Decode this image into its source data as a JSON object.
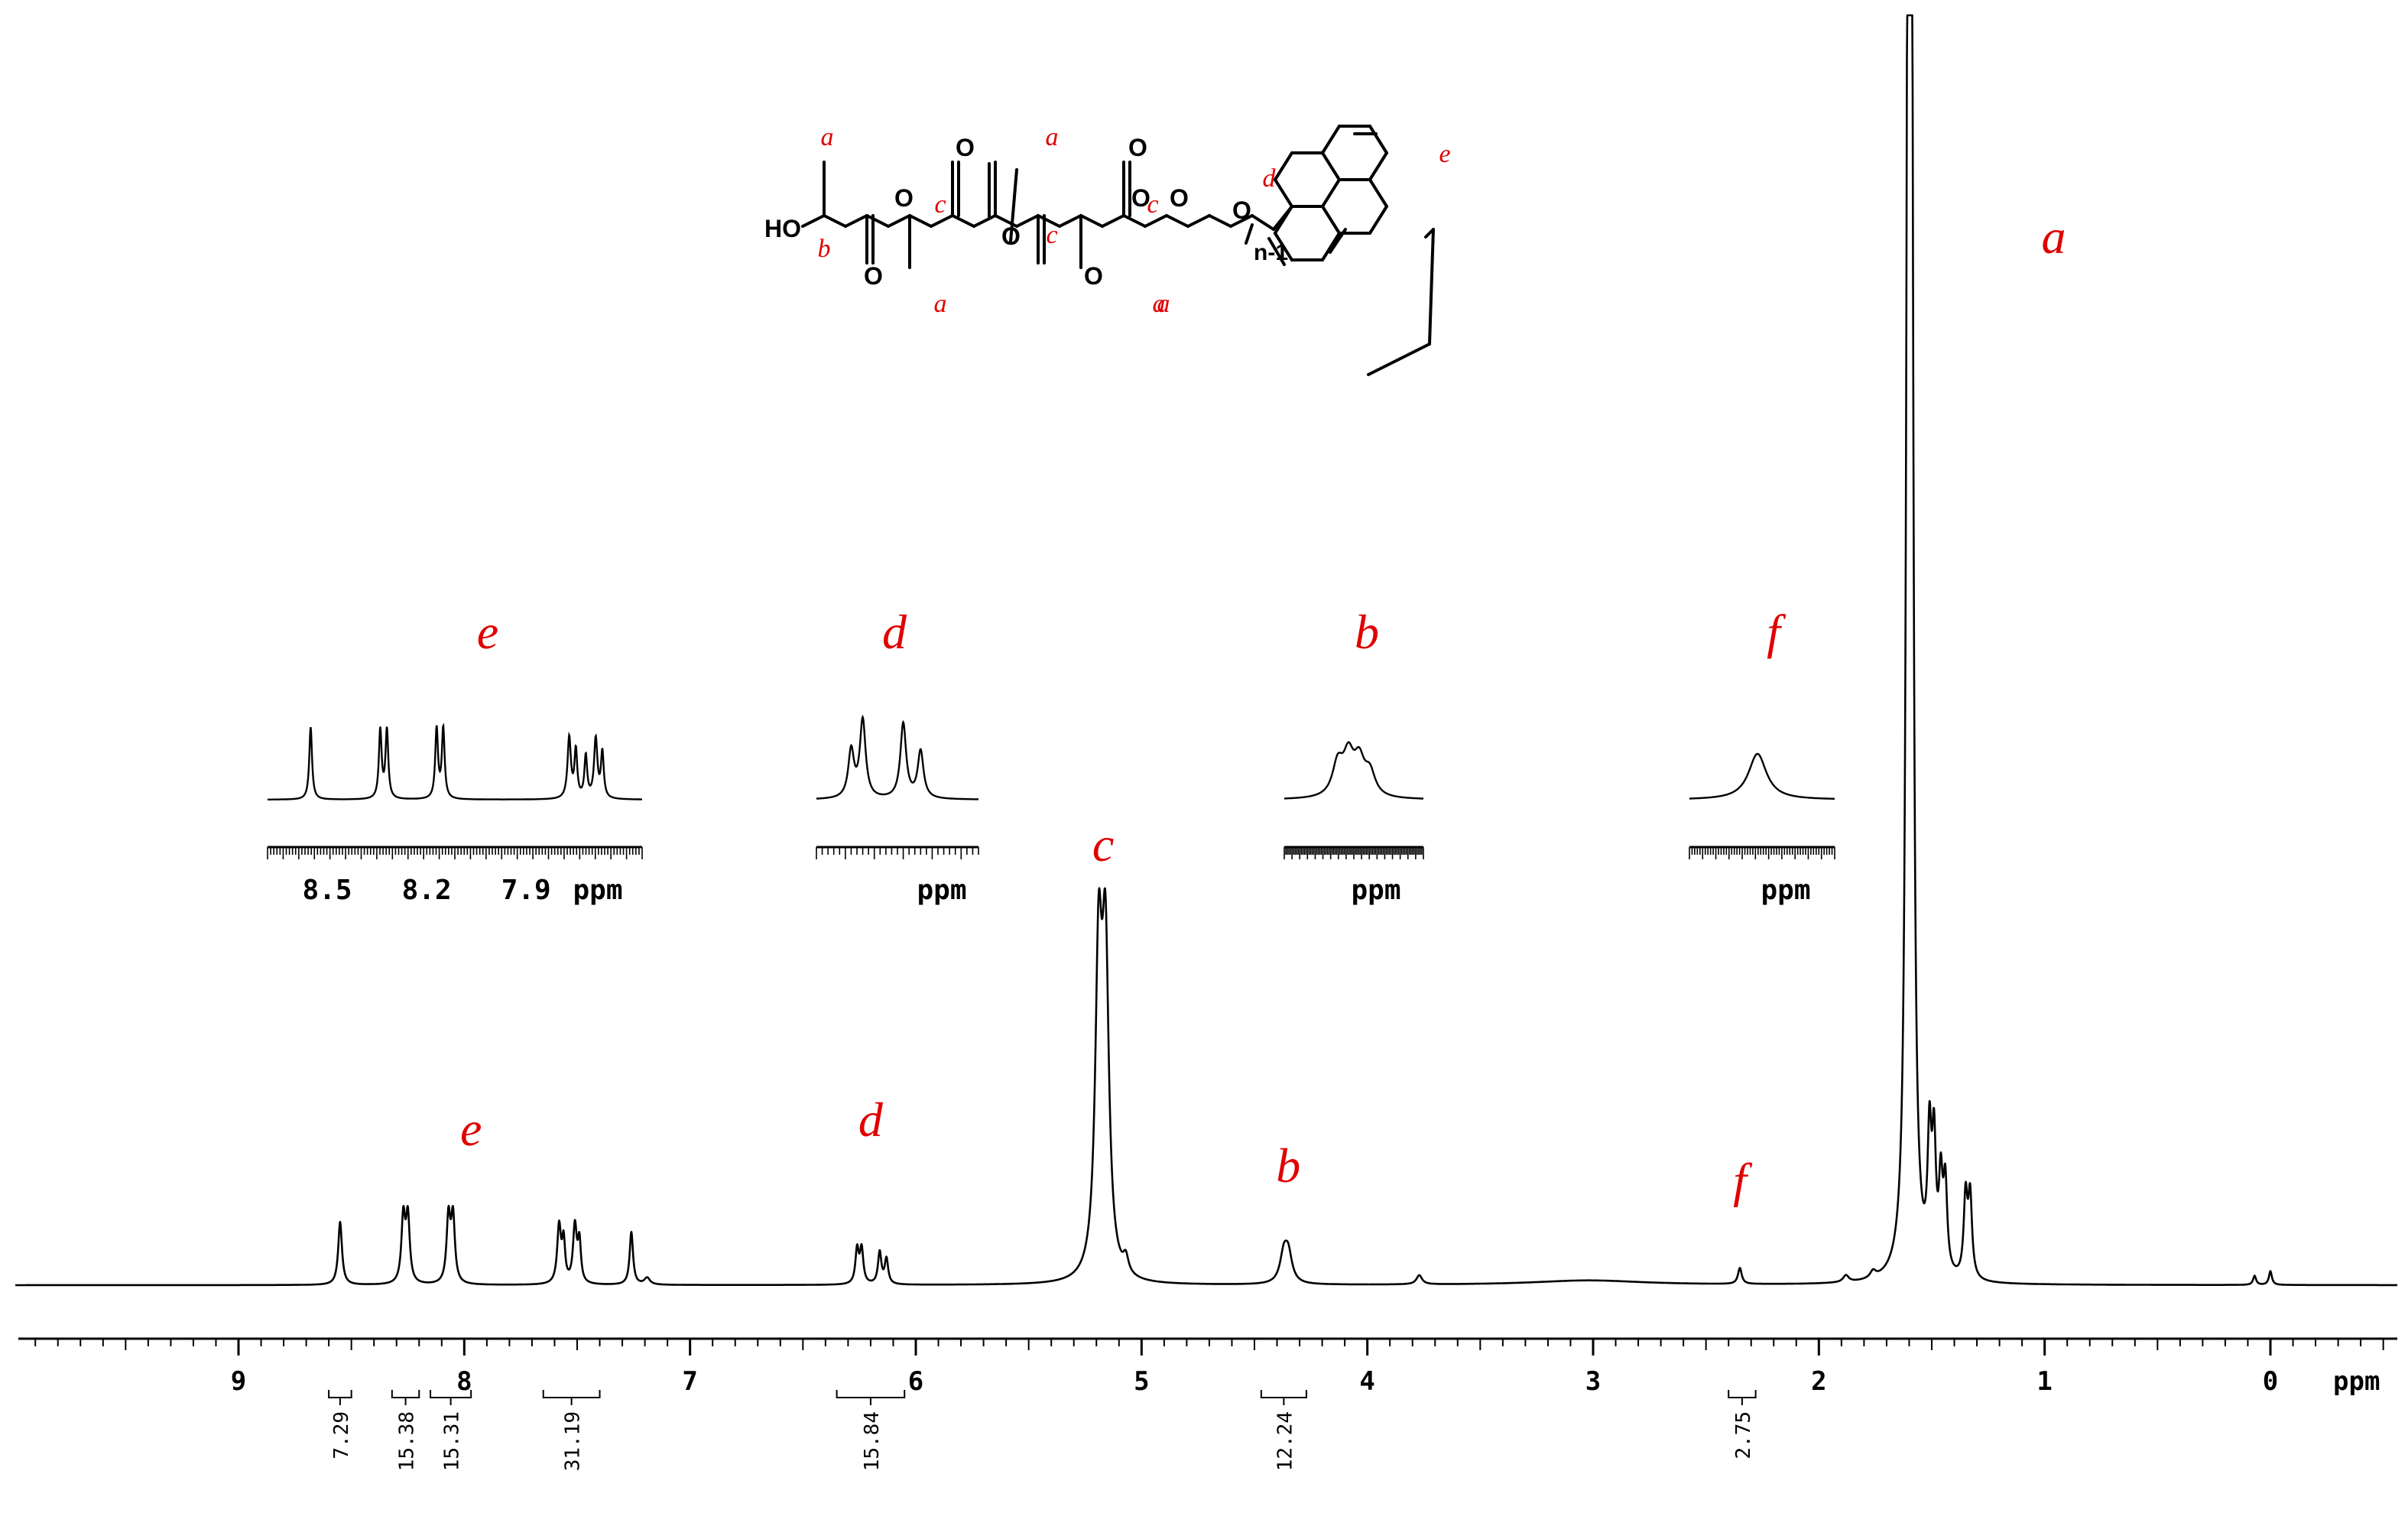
{
  "chart_data": {
    "type": "line",
    "title": "",
    "xlabel": "ppm",
    "ylabel": "",
    "x_reversed": true,
    "xlim": [
      10.0,
      -0.5
    ],
    "x_ticks": [
      9,
      8,
      7,
      6,
      5,
      4,
      3,
      2,
      1,
      0
    ],
    "x_tick_labels": [
      "9",
      "8",
      "7",
      "6",
      "5",
      "4",
      "3",
      "2",
      "1",
      "0"
    ],
    "grid": false,
    "series": [
      {
        "peaks": [
          {
            "x": 8.55,
            "h": 0.055,
            "w": 0.01
          },
          {
            "x": 8.27,
            "h": 0.057,
            "w": 0.01
          },
          {
            "x": 8.25,
            "h": 0.057,
            "w": 0.01
          },
          {
            "x": 8.07,
            "h": 0.057,
            "w": 0.01
          },
          {
            "x": 8.05,
            "h": 0.057,
            "w": 0.01
          },
          {
            "x": 7.58,
            "h": 0.05,
            "w": 0.01
          },
          {
            "x": 7.56,
            "h": 0.035,
            "w": 0.008
          },
          {
            "x": 7.51,
            "h": 0.05,
            "w": 0.01
          },
          {
            "x": 7.49,
            "h": 0.035,
            "w": 0.008
          },
          {
            "x": 7.26,
            "h": 0.046,
            "w": 0.009
          },
          {
            "x": 7.19,
            "h": 0.006,
            "w": 0.015
          },
          {
            "x": 6.26,
            "h": 0.03,
            "w": 0.009
          },
          {
            "x": 6.24,
            "h": 0.03,
            "w": 0.009
          },
          {
            "x": 6.16,
            "h": 0.028,
            "w": 0.009
          },
          {
            "x": 6.13,
            "h": 0.022,
            "w": 0.009
          },
          {
            "x": 5.19,
            "h": 0.27,
            "w": 0.018
          },
          {
            "x": 5.16,
            "h": 0.27,
            "w": 0.018
          },
          {
            "x": 5.07,
            "h": 0.014,
            "w": 0.014
          },
          {
            "x": 4.37,
            "h": 0.024,
            "w": 0.02
          },
          {
            "x": 4.35,
            "h": 0.024,
            "w": 0.02
          },
          {
            "x": 3.77,
            "h": 0.008,
            "w": 0.015
          },
          {
            "x": 3.02,
            "h": 0.004,
            "w": 0.3
          },
          {
            "x": 2.35,
            "h": 0.014,
            "w": 0.01
          },
          {
            "x": 1.88,
            "h": 0.006,
            "w": 0.015
          },
          {
            "x": 1.76,
            "h": 0.006,
            "w": 0.015
          },
          {
            "x": 1.605,
            "h": 1.15,
            "w": 0.009
          },
          {
            "x": 1.59,
            "h": 1.15,
            "w": 0.009
          },
          {
            "x": 1.51,
            "h": 0.11,
            "w": 0.01
          },
          {
            "x": 1.49,
            "h": 0.105,
            "w": 0.01
          },
          {
            "x": 1.46,
            "h": 0.075,
            "w": 0.01
          },
          {
            "x": 1.44,
            "h": 0.075,
            "w": 0.01
          },
          {
            "x": 1.35,
            "h": 0.07,
            "w": 0.01
          },
          {
            "x": 1.33,
            "h": 0.07,
            "w": 0.01
          },
          {
            "x": 0.07,
            "h": 0.008,
            "w": 0.008
          },
          {
            "x": 0.0,
            "h": 0.012,
            "w": 0.008
          }
        ]
      }
    ],
    "integrals": [
      {
        "from": 8.6,
        "to": 8.5,
        "value": "7.29"
      },
      {
        "from": 8.32,
        "to": 8.2,
        "value": "15.38"
      },
      {
        "from": 8.15,
        "to": 7.97,
        "value": "15.31"
      },
      {
        "from": 7.65,
        "to": 7.4,
        "value": "31.19"
      },
      {
        "from": 6.35,
        "to": 6.05,
        "value": "15.84"
      },
      {
        "from": 4.47,
        "to": 4.27,
        "value": "12.24"
      },
      {
        "from": 2.4,
        "to": 2.28,
        "value": "2.75"
      }
    ],
    "peak_labels": [
      {
        "text": "e",
        "x": 7.97,
        "height": 0.122
      },
      {
        "text": "d",
        "x": 6.2,
        "height": 0.13
      },
      {
        "text": "c",
        "x": 5.17,
        "height": 0.37
      },
      {
        "text": "b",
        "x": 4.35,
        "height": 0.09
      },
      {
        "text": "f",
        "x": 2.35,
        "height": 0.077
      },
      {
        "text": "a",
        "x": 0.96,
        "height": 0.9
      }
    ],
    "insets": [
      {
        "label": "e",
        "tick_labels": [
          "8.5",
          "8.2",
          "7.9"
        ],
        "unit": "ppm"
      },
      {
        "label": "d",
        "tick_labels": [],
        "unit": "ppm"
      },
      {
        "label": "b",
        "tick_labels": [],
        "unit": "ppm"
      },
      {
        "label": "f",
        "tick_labels": [],
        "unit": "ppm"
      }
    ]
  },
  "structure": {
    "atom_labels": [
      "HO",
      "O",
      "O",
      "O",
      "O",
      "O",
      "O",
      "O",
      "O",
      "O",
      "n-1"
    ],
    "position_labels": [
      "a",
      "b",
      "c",
      "a",
      "a",
      "c",
      "c",
      "a",
      "a",
      "d",
      "e"
    ]
  },
  "colors": {
    "annotation": "#e00000",
    "trace": "#000000"
  }
}
